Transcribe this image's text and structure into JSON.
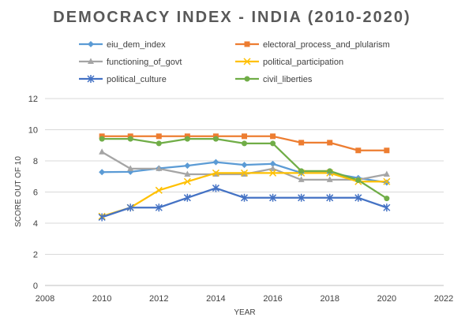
{
  "chart_data": {
    "type": "line",
    "title": "DEMOCRACY INDEX - INDIA (2010-2020)",
    "xlabel": "YEAR",
    "ylabel": "SCORE OUT OF 10",
    "xlim": [
      2008,
      2022
    ],
    "ylim": [
      0,
      12
    ],
    "xticks": [
      2008,
      2010,
      2012,
      2014,
      2016,
      2018,
      2020,
      2022
    ],
    "yticks": [
      0,
      2,
      4,
      6,
      8,
      10,
      12
    ],
    "grid": "horizontal",
    "legend_position": "top",
    "x": [
      2010,
      2011,
      2012,
      2013,
      2014,
      2015,
      2016,
      2017,
      2018,
      2019,
      2020
    ],
    "series": [
      {
        "name": "eiu_dem_index",
        "color": "#5B9BD5",
        "marker": "diamond",
        "values": [
          7.28,
          7.3,
          7.52,
          7.69,
          7.92,
          7.74,
          7.81,
          7.23,
          7.23,
          6.9,
          6.61
        ]
      },
      {
        "name": "electoral_process_and_plularism",
        "color": "#ED7D31",
        "marker": "square",
        "values": [
          9.58,
          9.58,
          9.58,
          9.58,
          9.58,
          9.58,
          9.58,
          9.17,
          9.17,
          8.67,
          8.67
        ]
      },
      {
        "name": "functioning_of_govt",
        "color": "#A5A5A5",
        "marker": "triangle",
        "values": [
          8.57,
          7.5,
          7.5,
          7.14,
          7.14,
          7.14,
          7.5,
          6.79,
          6.79,
          6.79,
          7.14
        ]
      },
      {
        "name": "political_participation",
        "color": "#FFC000",
        "marker": "x",
        "values": [
          4.44,
          5.0,
          6.11,
          6.67,
          7.22,
          7.22,
          7.22,
          7.22,
          7.22,
          6.67,
          6.67
        ]
      },
      {
        "name": "political_culture",
        "color": "#4472C4",
        "marker": "star",
        "values": [
          4.38,
          5.0,
          5.0,
          5.63,
          6.25,
          5.63,
          5.63,
          5.63,
          5.63,
          5.63,
          5.0
        ]
      },
      {
        "name": "civil_liberties",
        "color": "#70AD47",
        "marker": "circle",
        "values": [
          9.41,
          9.41,
          9.12,
          9.41,
          9.41,
          9.12,
          9.12,
          7.35,
          7.35,
          6.76,
          5.59
        ]
      }
    ]
  }
}
